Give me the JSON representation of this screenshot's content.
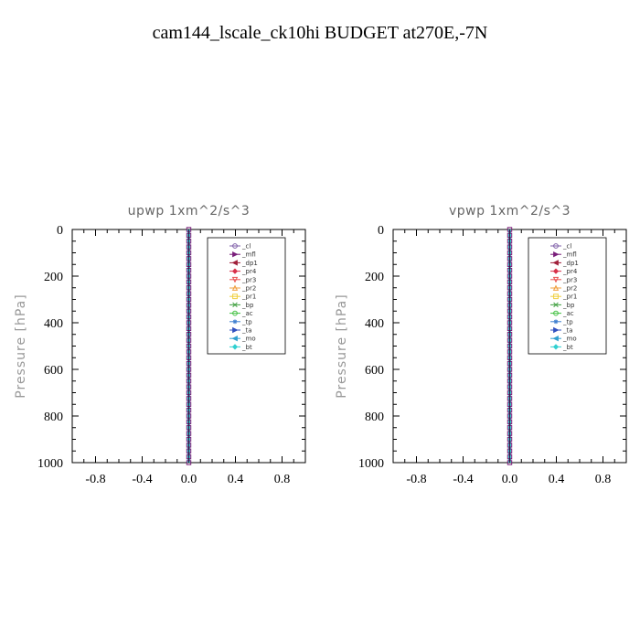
{
  "title": "cam144_lscale_ck10hi  BUDGET at270E,-7N",
  "chart_data": [
    {
      "type": "line",
      "title": "upwp   1xm^2/s^3",
      "ylabel": "Pressure  [hPa]",
      "xlabel": "",
      "xlim": [
        -1.0,
        1.0
      ],
      "ylim": [
        1000,
        0
      ],
      "y_inverted": true,
      "xticks": [
        "-0.8",
        "-0.4",
        "0.0",
        "0.4",
        "0.8"
      ],
      "xtick_values": [
        -0.8,
        -0.4,
        0.0,
        0.4,
        0.8
      ],
      "yticks": [
        "0",
        "200",
        "400",
        "600",
        "800",
        "1000"
      ],
      "ytick_values": [
        0,
        200,
        400,
        600,
        800,
        1000
      ],
      "legend_position": "top-right",
      "series": [
        {
          "name": "_cl",
          "color": "#7f5fa8",
          "marker": "circle",
          "x": [
            0.0,
            0.0
          ],
          "y": [
            0,
            1000
          ]
        },
        {
          "name": "_mfl",
          "color": "#7a1f7a",
          "marker": "triangle-right",
          "x": [
            0.0,
            0.0
          ],
          "y": [
            0,
            1000
          ]
        },
        {
          "name": "_dp1",
          "color": "#a0203a",
          "marker": "triangle-left",
          "x": [
            0.0,
            0.0
          ],
          "y": [
            0,
            1000
          ]
        },
        {
          "name": "_pr4",
          "color": "#d8304a",
          "marker": "diamond",
          "x": [
            0.0,
            0.0
          ],
          "y": [
            0,
            1000
          ]
        },
        {
          "name": "_pr3",
          "color": "#e85050",
          "marker": "triangle-down",
          "x": [
            0.0,
            0.0
          ],
          "y": [
            0,
            1000
          ]
        },
        {
          "name": "_pr2",
          "color": "#f0a040",
          "marker": "triangle-up",
          "x": [
            0.0,
            0.0
          ],
          "y": [
            0,
            1000
          ]
        },
        {
          "name": "_pr1",
          "color": "#f0d040",
          "marker": "square",
          "x": [
            0.0,
            0.0
          ],
          "y": [
            0,
            1000
          ]
        },
        {
          "name": "_bp",
          "color": "#40a040",
          "marker": "cross",
          "x": [
            0.0,
            0.0
          ],
          "y": [
            0,
            1000
          ]
        },
        {
          "name": "_ac",
          "color": "#40c040",
          "marker": "circle",
          "x": [
            0.0,
            0.0
          ],
          "y": [
            0,
            1000
          ]
        },
        {
          "name": "_tp",
          "color": "#4080d0",
          "marker": "star",
          "x": [
            0.0,
            0.0
          ],
          "y": [
            0,
            1000
          ]
        },
        {
          "name": "_ta",
          "color": "#3050c0",
          "marker": "triangle-right",
          "x": [
            0.0,
            0.0
          ],
          "y": [
            0,
            1000
          ]
        },
        {
          "name": "_mo",
          "color": "#30a0d0",
          "marker": "triangle-left",
          "x": [
            0.0,
            0.0
          ],
          "y": [
            0,
            1000
          ]
        },
        {
          "name": "_bt",
          "color": "#30d0d0",
          "marker": "diamond",
          "x": [
            0.0,
            0.0
          ],
          "y": [
            0,
            1000
          ]
        }
      ]
    },
    {
      "type": "line",
      "title": "vpwp   1xm^2/s^3",
      "ylabel": "Pressure  [hPa]",
      "xlabel": "",
      "xlim": [
        -1.0,
        1.0
      ],
      "ylim": [
        1000,
        0
      ],
      "y_inverted": true,
      "xticks": [
        "-0.8",
        "-0.4",
        "0.0",
        "0.4",
        "0.8"
      ],
      "xtick_values": [
        -0.8,
        -0.4,
        0.0,
        0.4,
        0.8
      ],
      "yticks": [
        "0",
        "200",
        "400",
        "600",
        "800",
        "1000"
      ],
      "ytick_values": [
        0,
        200,
        400,
        600,
        800,
        1000
      ],
      "legend_position": "top-right",
      "series": [
        {
          "name": "_cl",
          "color": "#7f5fa8",
          "marker": "circle",
          "x": [
            0.0,
            0.0
          ],
          "y": [
            0,
            1000
          ]
        },
        {
          "name": "_mfl",
          "color": "#7a1f7a",
          "marker": "triangle-right",
          "x": [
            0.0,
            0.0
          ],
          "y": [
            0,
            1000
          ]
        },
        {
          "name": "_dp1",
          "color": "#a0203a",
          "marker": "triangle-left",
          "x": [
            0.0,
            0.0
          ],
          "y": [
            0,
            1000
          ]
        },
        {
          "name": "_pr4",
          "color": "#d8304a",
          "marker": "diamond",
          "x": [
            0.0,
            0.0
          ],
          "y": [
            0,
            1000
          ]
        },
        {
          "name": "_pr3",
          "color": "#e85050",
          "marker": "triangle-down",
          "x": [
            0.0,
            0.0
          ],
          "y": [
            0,
            1000
          ]
        },
        {
          "name": "_pr2",
          "color": "#f0a040",
          "marker": "triangle-up",
          "x": [
            0.0,
            0.0
          ],
          "y": [
            0,
            1000
          ]
        },
        {
          "name": "_pr1",
          "color": "#f0d040",
          "marker": "square",
          "x": [
            0.0,
            0.0
          ],
          "y": [
            0,
            1000
          ]
        },
        {
          "name": "_bp",
          "color": "#40a040",
          "marker": "cross",
          "x": [
            0.0,
            0.0
          ],
          "y": [
            0,
            1000
          ]
        },
        {
          "name": "_ac",
          "color": "#40c040",
          "marker": "circle",
          "x": [
            0.0,
            0.0
          ],
          "y": [
            0,
            1000
          ]
        },
        {
          "name": "_tp",
          "color": "#4080d0",
          "marker": "star",
          "x": [
            0.0,
            0.0
          ],
          "y": [
            0,
            1000
          ]
        },
        {
          "name": "_ta",
          "color": "#3050c0",
          "marker": "triangle-right",
          "x": [
            0.0,
            0.0
          ],
          "y": [
            0,
            1000
          ]
        },
        {
          "name": "_mo",
          "color": "#30a0d0",
          "marker": "triangle-left",
          "x": [
            0.0,
            0.0
          ],
          "y": [
            0,
            1000
          ]
        },
        {
          "name": "_bt",
          "color": "#30d0d0",
          "marker": "diamond",
          "x": [
            0.0,
            0.0
          ],
          "y": [
            0,
            1000
          ]
        }
      ]
    }
  ]
}
